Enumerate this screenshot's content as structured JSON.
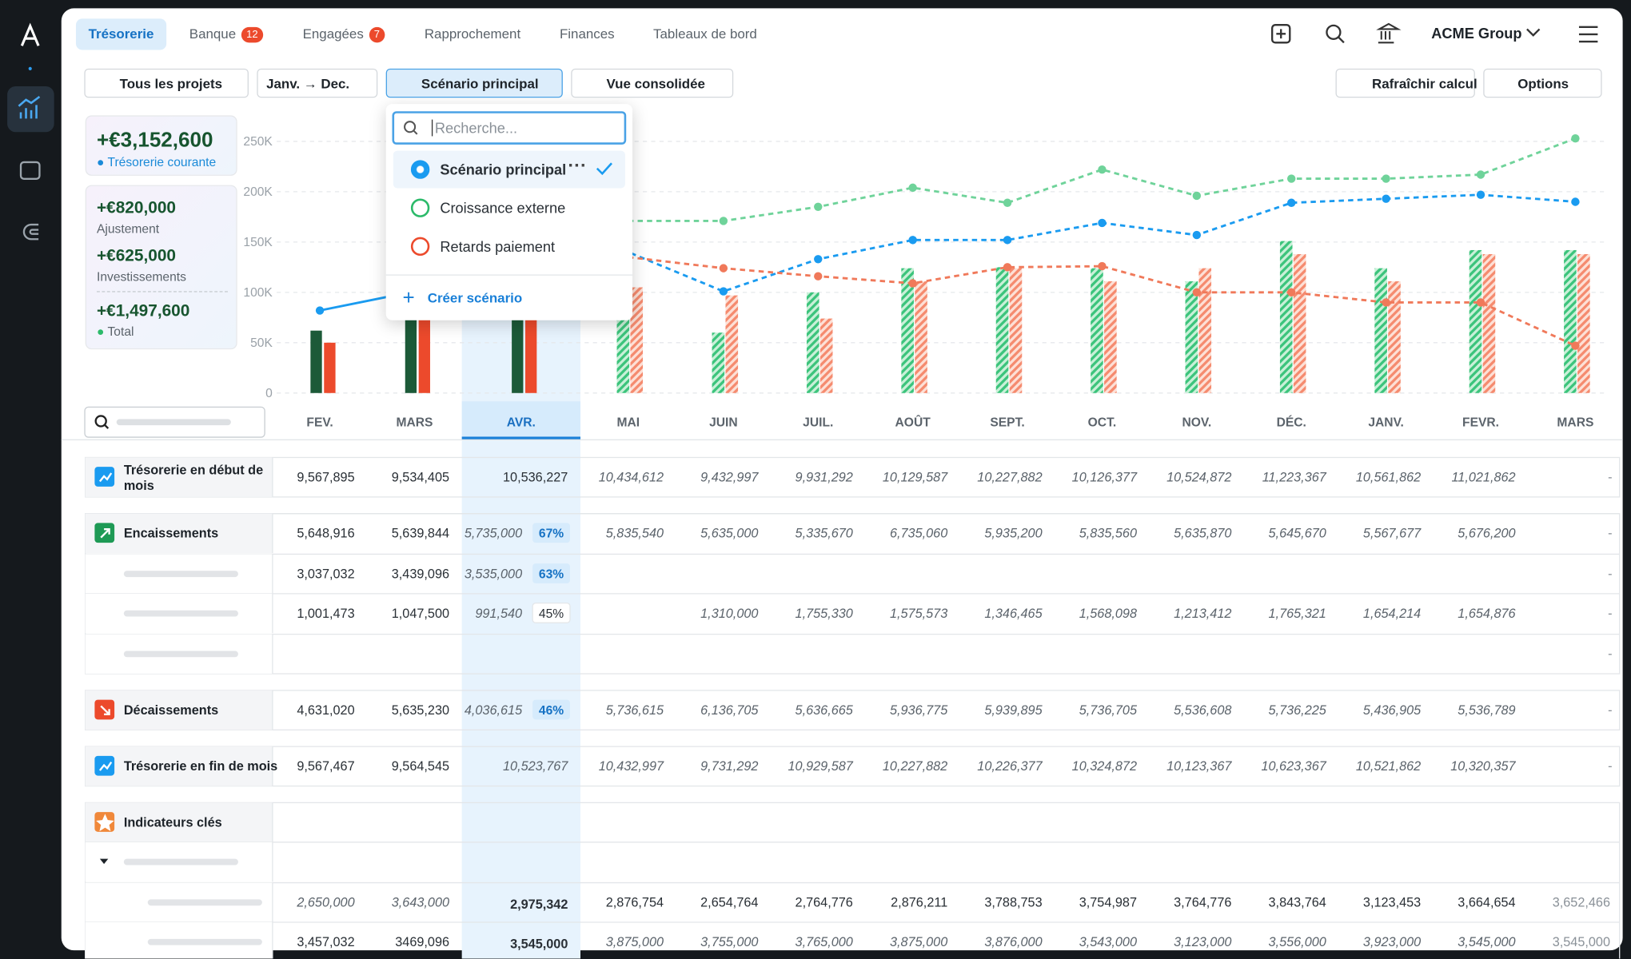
{
  "nav": {
    "tabs": [
      {
        "label": "Trésorerie"
      },
      {
        "label": "Banque",
        "badge": 12
      },
      {
        "label": "Engagées",
        "badge": 7
      },
      {
        "label": "Rapprochement"
      },
      {
        "label": "Finances"
      },
      {
        "label": "Tableaux de bord"
      }
    ],
    "org": "ACME Group"
  },
  "filters": [
    "Tous les projets",
    "Janv. → Dec.",
    "Scénario principal",
    "Vue consolidée"
  ],
  "actions": [
    "Rafraîchir calcul",
    "Options"
  ],
  "dropdown": {
    "placeholder": "Recherche...",
    "items": [
      "Scénario principal",
      "Croissance externe",
      "Retards paiement"
    ],
    "create": "Créer scénario"
  },
  "summary": [
    {
      "amount": "+€3,152,600",
      "label": "Trésorerie courante"
    },
    {
      "amount": "+€820,000",
      "label": "Ajustement"
    },
    {
      "amount": "+€625,000",
      "label": "Investissements"
    },
    {
      "amount": "+€1,497,600",
      "label": "Total"
    }
  ],
  "chart": {
    "type": "bar",
    "categories": [
      "FEV.",
      "MARS",
      "AVR.",
      "MAI",
      "JUIN",
      "JUIL.",
      "AOÛT",
      "SEPT.",
      "OCT.",
      "NOV.",
      "DÉC.",
      "JANV.",
      "FEVR.",
      "MARS"
    ],
    "ylim": [
      0,
      260000
    ],
    "yticks": [
      {
        "value": 0,
        "label": "0"
      },
      {
        "value": 50000,
        "label": "50K"
      },
      {
        "value": 100000,
        "label": "100K"
      },
      {
        "value": 150000,
        "label": "150K"
      },
      {
        "value": 200000,
        "label": "200K"
      },
      {
        "value": 250000,
        "label": "250K"
      }
    ],
    "grid": true,
    "forecast_from": 3,
    "series": [
      {
        "type": "bar",
        "color": "#3cc47c",
        "realized_color": "#1c5a38",
        "values": [
          62000,
          100000,
          95000,
          75000,
          60000,
          100000,
          124000,
          125000,
          124000,
          111000,
          151000,
          124000,
          142000,
          142000
        ]
      },
      {
        "type": "bar",
        "color": "#f58b6f",
        "realized_color": "#ec4a2c",
        "values": [
          50000,
          100000,
          100000,
          105000,
          97000,
          74000,
          111000,
          124000,
          111000,
          124000,
          138000,
          111000,
          138000,
          138000
        ]
      },
      {
        "type": "line",
        "color": "#1a9bf0",
        "dash_from": 2,
        "values": [
          82000,
          101000,
          118000,
          140000,
          101000,
          133000,
          152000,
          152000,
          169000,
          157000,
          189000,
          193000,
          197000,
          190000
        ]
      },
      {
        "type": "line",
        "color": "#6fd39a",
        "dash_from": 0,
        "values": [
          null,
          null,
          null,
          171000,
          171000,
          185000,
          204000,
          189000,
          222000,
          196000,
          213000,
          213000,
          217000,
          253000
        ]
      },
      {
        "type": "line",
        "color": "#f0795a",
        "dash_from": 0,
        "values": [
          null,
          null,
          null,
          135000,
          124000,
          116000,
          109000,
          125000,
          126000,
          100000,
          100000,
          90000,
          90000,
          47000
        ]
      }
    ]
  },
  "table": {
    "rows": [
      {
        "label": "Trésorerie en début de mois",
        "values": [
          "9,567,895",
          "9,534,405",
          "10,536,227",
          "10,434,612",
          "9,432,997",
          "9,931,292",
          "10,129,587",
          "10,227,882",
          "10,126,377",
          "10,524,872",
          "11,223,367",
          "10,561,862",
          "11,021,862",
          "-"
        ]
      },
      {
        "label": "Encaissements",
        "pct": "67%",
        "values": [
          "5,648,916",
          "5,639,844",
          "5,735,000",
          "5,835,540",
          "5,635,000",
          "5,335,670",
          "6,735,060",
          "5,935,200",
          "5,835,560",
          "5,635,870",
          "5,645,670",
          "5,567,677",
          "5,676,200",
          "-"
        ]
      },
      {
        "pct": "63%",
        "values": [
          "3,037,032",
          "3,439,096",
          "3,535,000",
          null,
          null,
          null,
          null,
          null,
          null,
          null,
          null,
          null,
          null,
          "-"
        ]
      },
      {
        "pct": "45%",
        "values": [
          "1,001,473",
          "1,047,500",
          "991,540",
          null,
          "1,310,000",
          "1,755,330",
          "1,575,573",
          "1,346,465",
          "1,568,098",
          "1,213,412",
          "1,765,321",
          "1,654,214",
          "1,654,876",
          "-"
        ]
      },
      {
        "values": [
          null,
          null,
          null,
          null,
          null,
          null,
          null,
          null,
          null,
          null,
          null,
          null,
          null,
          "-"
        ]
      },
      {
        "label": "Décaissements",
        "pct": "46%",
        "values": [
          "4,631,020",
          "5,635,230",
          "4,036,615",
          "5,736,615",
          "6,136,705",
          "5,636,665",
          "5,936,775",
          "5,939,895",
          "5,736,705",
          "5,536,608",
          "5,736,225",
          "5,436,905",
          "5,536,789",
          "-"
        ]
      },
      {
        "label": "Trésorerie en fin de mois",
        "values": [
          "9,567,467",
          "9,564,545",
          "10,523,767",
          "10,432,997",
          "9,731,292",
          "10,929,587",
          "10,227,882",
          "10,226,377",
          "10,324,872",
          "10,123,367",
          "10,623,367",
          "10,521,862",
          "10,320,357",
          "-"
        ]
      },
      {
        "label": "Indicateurs clés",
        "values": [
          null,
          null,
          null,
          null,
          null,
          null,
          null,
          null,
          null,
          null,
          null,
          null,
          null,
          null
        ]
      },
      {
        "values": [
          null,
          null,
          null,
          null,
          null,
          null,
          null,
          null,
          null,
          null,
          null,
          null,
          null,
          null
        ]
      },
      {
        "values": [
          "2,650,000",
          "3,643,000",
          "2,975,342",
          "2,876,754",
          "2,654,764",
          "2,764,776",
          "2,876,211",
          "3,788,753",
          "3,754,987",
          "3,764,776",
          "3,843,764",
          "3,123,453",
          "3,664,654",
          "3,652,466"
        ]
      },
      {
        "values": [
          "3,457,032",
          "3469,096",
          "3,545,000",
          "3,875,000",
          "3,755,000",
          "3,765,000",
          "3,875,000",
          "3,876,000",
          "3,543,000",
          "3,123,000",
          "3,556,000",
          "3,923,000",
          "3,545,000",
          "3,545,000"
        ]
      }
    ]
  }
}
